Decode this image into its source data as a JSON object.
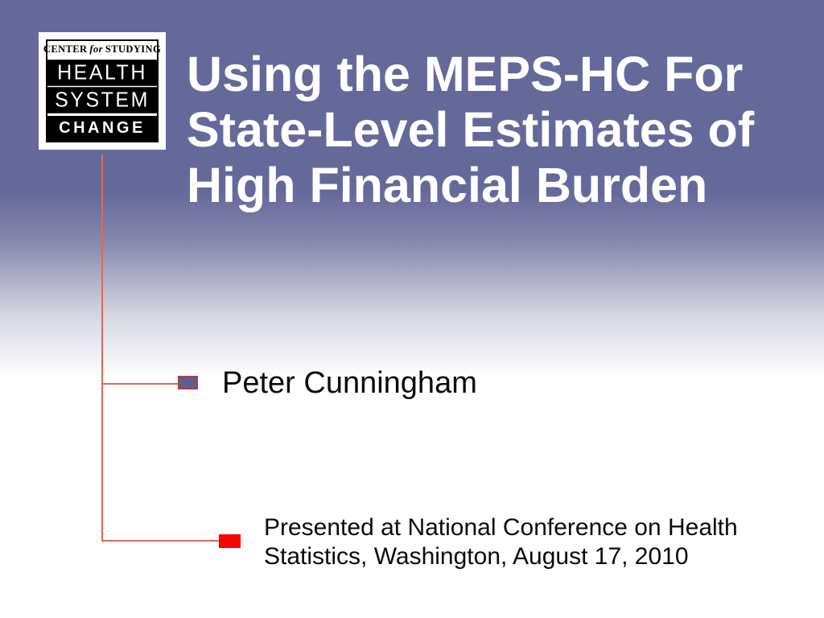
{
  "slide": {
    "title_lines": [
      "Using the MEPS-HC For",
      "State-Level Estimates of",
      "High Financial Burden"
    ],
    "bullets": [
      {
        "text": "Peter Cunningham"
      },
      {
        "text": "Presented at National Conference on Health Statistics, Washington, August 17, 2010"
      }
    ]
  },
  "logo": {
    "top_line": {
      "word1": "CENTER",
      "word2": "for",
      "word3": "STUDYING"
    },
    "bars": [
      "HEALTH",
      "SYSTEM",
      "CHANGE"
    ]
  },
  "colors": {
    "bg_purple": "#65699a",
    "title_white": "#ffffff",
    "line_red": "#dd6a58",
    "bullet1_fill": "#5b5f94",
    "bullet1_border": "#b23f3c",
    "bullet2_red": "#f90400",
    "text_black": "#0b0b0b"
  }
}
